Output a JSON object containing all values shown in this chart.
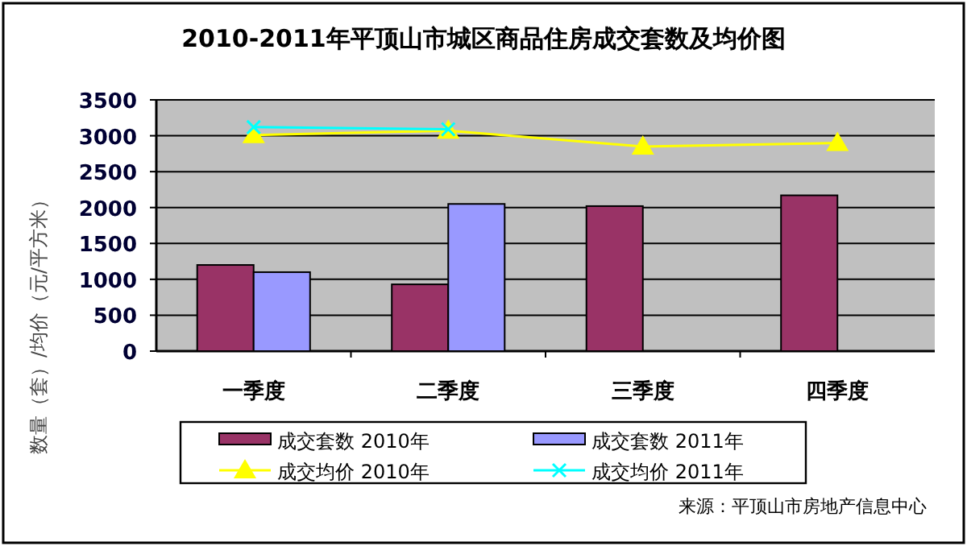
{
  "chart_data": {
    "type": "bar",
    "title": "2010-2011年平顶山市城区商品住房成交套数及均价图",
    "ylabel": "数量（套）/均价（元/平方米）",
    "categories": [
      "一季度",
      "二季度",
      "三季度",
      "四季度"
    ],
    "series": [
      {
        "name": "成交套数 2010年",
        "color": "#993366",
        "values": [
          1200,
          930,
          2020,
          2170
        ]
      },
      {
        "name": "成交套数 2011年",
        "color": "#9999ff",
        "values": [
          1100,
          2050,
          null,
          null
        ]
      },
      {
        "name": "成交均价 2010年",
        "type": "line",
        "color": "#ffff00",
        "marker": "triangle",
        "values": [
          3010,
          3070,
          2850,
          2900
        ]
      },
      {
        "name": "成交均价 2011年",
        "type": "line",
        "color": "#00ffff",
        "marker": "cross",
        "values": [
          3120,
          3090,
          null,
          null
        ]
      }
    ],
    "ylim": [
      0,
      3500
    ],
    "yticks": [
      0,
      500,
      1000,
      1500,
      2000,
      2500,
      3000,
      3500
    ],
    "grid": "y",
    "legend": "bottom",
    "annotations": [
      "来源：平顶山市房地产信息中心"
    ]
  }
}
